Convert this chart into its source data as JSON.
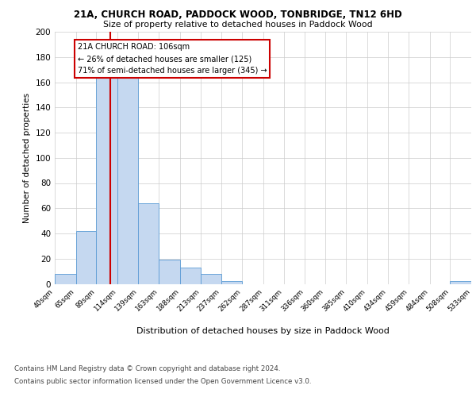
{
  "title1": "21A, CHURCH ROAD, PADDOCK WOOD, TONBRIDGE, TN12 6HD",
  "title2": "Size of property relative to detached houses in Paddock Wood",
  "xlabel": "Distribution of detached houses by size in Paddock Wood",
  "ylabel": "Number of detached properties",
  "bar_left_edges": [
    40,
    65,
    89,
    114,
    139,
    163,
    188,
    213,
    237,
    262,
    287,
    311,
    336,
    360,
    385,
    410,
    434,
    459,
    484,
    508
  ],
  "bar_widths": [
    25,
    24,
    25,
    25,
    24,
    25,
    25,
    24,
    25,
    25,
    24,
    25,
    24,
    25,
    25,
    24,
    25,
    25,
    24,
    25
  ],
  "bar_heights": [
    8,
    42,
    164,
    168,
    64,
    19,
    13,
    8,
    2,
    0,
    0,
    0,
    0,
    0,
    0,
    0,
    0,
    0,
    0,
    2
  ],
  "bar_color": "#c5d8f0",
  "bar_edge_color": "#5b9bd5",
  "tick_labels": [
    "40sqm",
    "65sqm",
    "89sqm",
    "114sqm",
    "139sqm",
    "163sqm",
    "188sqm",
    "213sqm",
    "237sqm",
    "262sqm",
    "287sqm",
    "311sqm",
    "336sqm",
    "360sqm",
    "385sqm",
    "410sqm",
    "434sqm",
    "459sqm",
    "484sqm",
    "508sqm",
    "533sqm"
  ],
  "ylim": [
    0,
    200
  ],
  "yticks": [
    0,
    20,
    40,
    60,
    80,
    100,
    120,
    140,
    160,
    180,
    200
  ],
  "property_size": 106,
  "vline_color": "#cc0000",
  "annotation_title": "21A CHURCH ROAD: 106sqm",
  "annotation_line1": "← 26% of detached houses are smaller (125)",
  "annotation_line2": "71% of semi-detached houses are larger (345) →",
  "annotation_box_color": "#ffffff",
  "annotation_box_edge": "#cc0000",
  "footer1": "Contains HM Land Registry data © Crown copyright and database right 2024.",
  "footer2": "Contains public sector information licensed under the Open Government Licence v3.0.",
  "bg_color": "#ffffff",
  "grid_color": "#cccccc"
}
